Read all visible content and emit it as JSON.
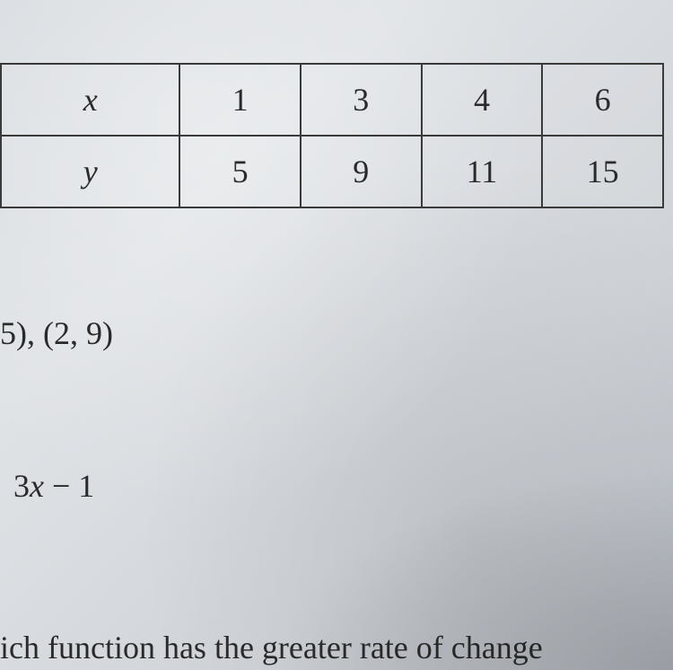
{
  "table": {
    "columns": [
      "x",
      "1",
      "3",
      "4",
      "6"
    ],
    "rows": [
      [
        "y",
        "5",
        "9",
        "11",
        "15"
      ]
    ],
    "border_color": "#3a3a3a",
    "font_size": 36,
    "header_italic": true
  },
  "text_lines": {
    "line1": "5), (2, 9)",
    "line2_prefix": "3",
    "line2_var": "x",
    "line2_suffix": " − 1",
    "line3": "ich function has the greater rate of change"
  },
  "styling": {
    "background_color": "#d8dce0",
    "text_color": "#2a2a2a",
    "font_family": "Times New Roman",
    "body_font_size": 36
  }
}
